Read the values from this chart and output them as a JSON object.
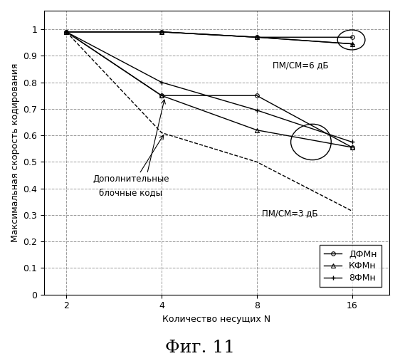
{
  "x_values": [
    2,
    4,
    8,
    16
  ],
  "dfmn_6db": [
    0.99,
    0.99,
    0.97,
    0.97
  ],
  "kfmn_6db": [
    0.99,
    0.99,
    0.97,
    0.945
  ],
  "8fmn_6db": [
    0.99,
    0.99,
    0.97,
    0.945
  ],
  "dfmn_3db": [
    0.99,
    0.75,
    0.75,
    0.555
  ],
  "kfmn_3db": [
    0.99,
    0.75,
    0.62,
    0.555
  ],
  "8fmn_3db": [
    0.99,
    0.8,
    0.695,
    0.575
  ],
  "dashed_line": [
    0.99,
    0.61,
    0.5,
    0.315
  ],
  "ylabel": "Максимальная скорость кодирования",
  "xlabel": "Количество несущих N",
  "fig_label": "Фиг. 11",
  "label_6db": "ПМ/СМ=6 дБ",
  "label_3db": "ПМ/СМ=3 дБ",
  "label_add_codes_line1": "Дополнительные",
  "label_add_codes_line2": "блочные коды",
  "legend_dfmn": "ДФМн",
  "legend_kfmn": "КФМн",
  "legend_8fmn": "8ФМн",
  "bg_color": "#ffffff",
  "line_color": "#000000",
  "grid_color": "#aaaaaa"
}
